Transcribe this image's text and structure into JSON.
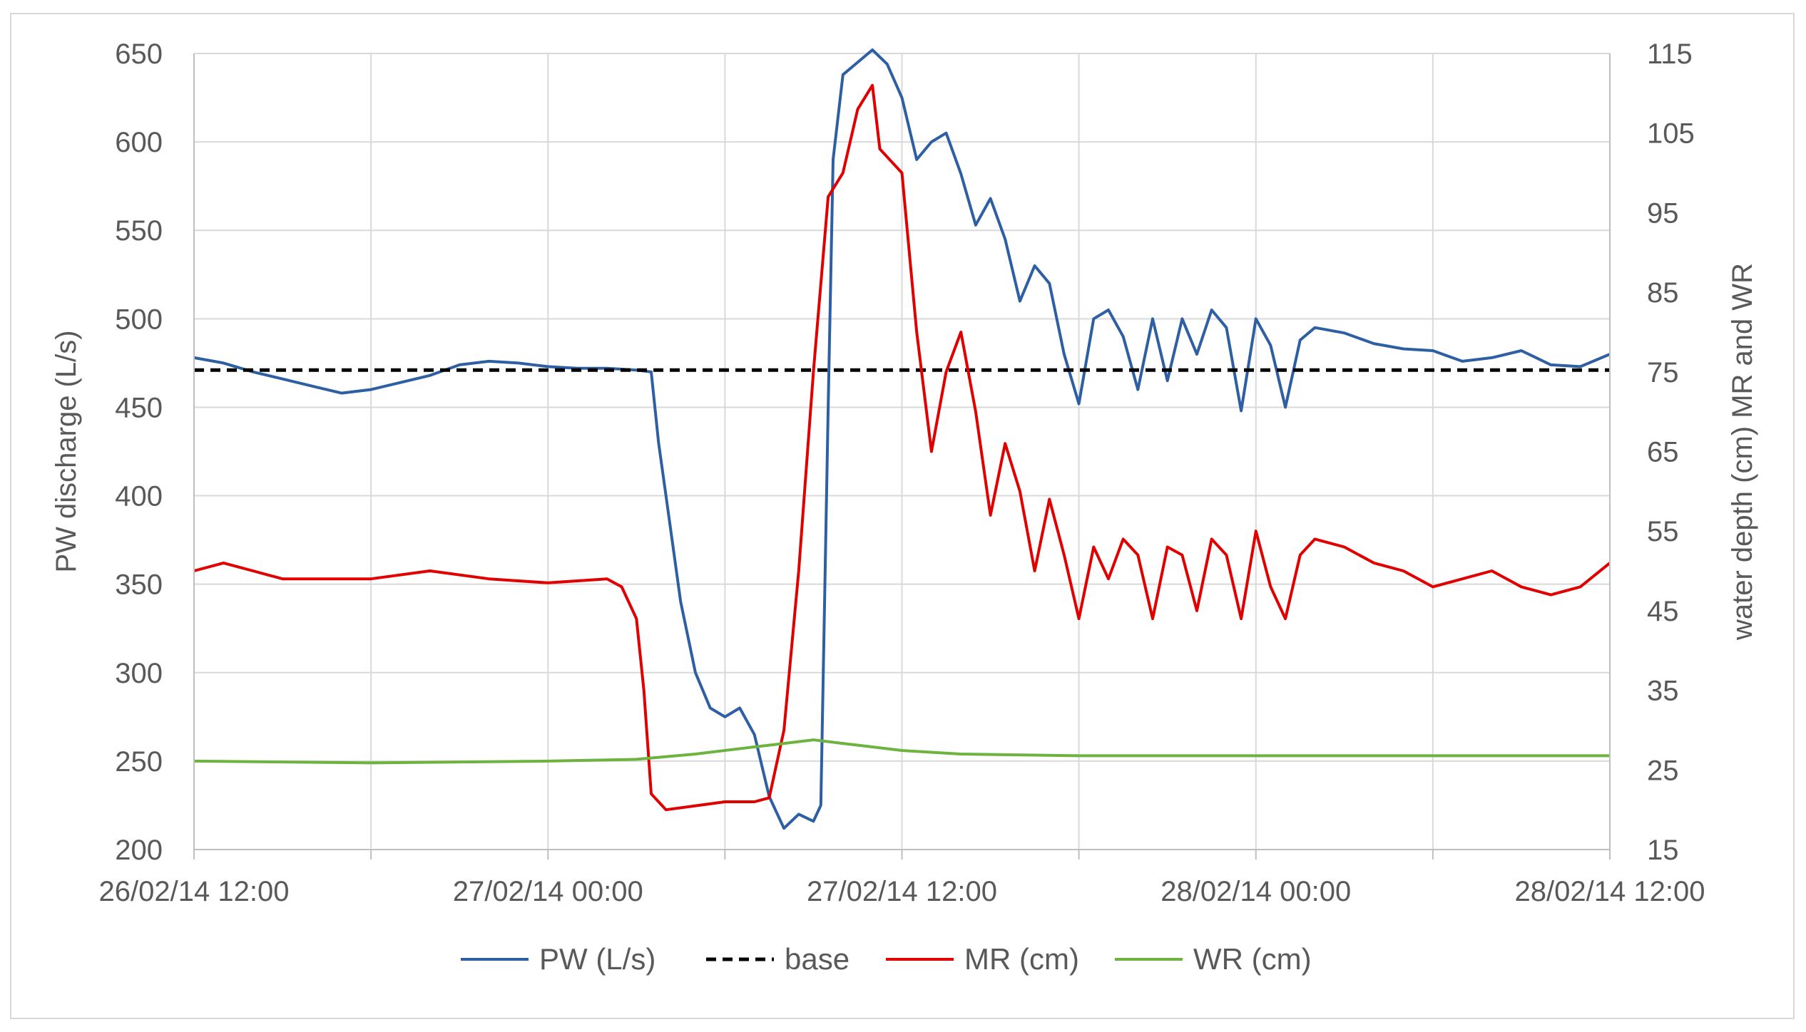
{
  "chart_data": {
    "type": "line",
    "title": "",
    "xlabel": "",
    "ylabel": "PW discharge (L/s)",
    "y2label": "water depth (cm) MR and WR",
    "x_range": [
      "26/02/14 12:00",
      "28/02/14 12:00"
    ],
    "x_ticks": [
      "26/02/14 12:00",
      "27/02/14 00:00",
      "27/02/14 12:00",
      "28/02/14 00:00",
      "28/02/14 12:00"
    ],
    "ylim": [
      200,
      650
    ],
    "y_ticks": [
      200,
      250,
      300,
      350,
      400,
      450,
      500,
      550,
      600,
      650
    ],
    "y2lim": [
      15,
      115
    ],
    "y2_ticks": [
      15,
      25,
      35,
      45,
      55,
      65,
      75,
      85,
      95,
      105,
      115
    ],
    "grid": true,
    "legend_position": "bottom",
    "series": [
      {
        "name": "PW (L/s)",
        "axis": "left",
        "color": "#2e5fa3",
        "style": "solid",
        "points": [
          [
            "26/02/14 12:00",
            478
          ],
          [
            "26/02/14 13:00",
            475
          ],
          [
            "26/02/14 14:00",
            470
          ],
          [
            "26/02/14 15:00",
            466
          ],
          [
            "26/02/14 16:00",
            462
          ],
          [
            "26/02/14 17:00",
            458
          ],
          [
            "26/02/14 18:00",
            460
          ],
          [
            "26/02/14 19:00",
            464
          ],
          [
            "26/02/14 20:00",
            468
          ],
          [
            "26/02/14 21:00",
            474
          ],
          [
            "26/02/14 22:00",
            476
          ],
          [
            "26/02/14 23:00",
            475
          ],
          [
            "27/02/14 00:00",
            473
          ],
          [
            "27/02/14 01:00",
            472
          ],
          [
            "27/02/14 02:00",
            472
          ],
          [
            "27/02/14 03:00",
            471
          ],
          [
            "27/02/14 03:30",
            470
          ],
          [
            "27/02/14 03:45",
            430
          ],
          [
            "27/02/14 04:00",
            400
          ],
          [
            "27/02/14 04:30",
            340
          ],
          [
            "27/02/14 05:00",
            300
          ],
          [
            "27/02/14 05:30",
            280
          ],
          [
            "27/02/14 06:00",
            275
          ],
          [
            "27/02/14 06:30",
            280
          ],
          [
            "27/02/14 07:00",
            265
          ],
          [
            "27/02/14 07:30",
            230
          ],
          [
            "27/02/14 08:00",
            212
          ],
          [
            "27/02/14 08:30",
            220
          ],
          [
            "27/02/14 09:00",
            216
          ],
          [
            "27/02/14 09:15",
            225
          ],
          [
            "27/02/14 09:30",
            450
          ],
          [
            "27/02/14 09:40",
            590
          ],
          [
            "27/02/14 10:00",
            638
          ],
          [
            "27/02/14 10:30",
            645
          ],
          [
            "27/02/14 11:00",
            652
          ],
          [
            "27/02/14 11:30",
            644
          ],
          [
            "27/02/14 12:00",
            625
          ],
          [
            "27/02/14 12:30",
            590
          ],
          [
            "27/02/14 13:00",
            600
          ],
          [
            "27/02/14 13:30",
            605
          ],
          [
            "27/02/14 14:00",
            582
          ],
          [
            "27/02/14 14:30",
            553
          ],
          [
            "27/02/14 15:00",
            568
          ],
          [
            "27/02/14 15:30",
            545
          ],
          [
            "27/02/14 16:00",
            510
          ],
          [
            "27/02/14 16:30",
            530
          ],
          [
            "27/02/14 17:00",
            520
          ],
          [
            "27/02/14 17:30",
            480
          ],
          [
            "27/02/14 18:00",
            452
          ],
          [
            "27/02/14 18:30",
            500
          ],
          [
            "27/02/14 19:00",
            505
          ],
          [
            "27/02/14 19:30",
            490
          ],
          [
            "27/02/14 20:00",
            460
          ],
          [
            "27/02/14 20:30",
            500
          ],
          [
            "27/02/14 21:00",
            465
          ],
          [
            "27/02/14 21:30",
            500
          ],
          [
            "27/02/14 22:00",
            480
          ],
          [
            "27/02/14 22:30",
            505
          ],
          [
            "27/02/14 23:00",
            495
          ],
          [
            "27/02/14 23:30",
            448
          ],
          [
            "28/02/14 00:00",
            500
          ],
          [
            "28/02/14 00:30",
            485
          ],
          [
            "28/02/14 01:00",
            450
          ],
          [
            "28/02/14 01:30",
            488
          ],
          [
            "28/02/14 02:00",
            495
          ],
          [
            "28/02/14 03:00",
            492
          ],
          [
            "28/02/14 04:00",
            486
          ],
          [
            "28/02/14 05:00",
            483
          ],
          [
            "28/02/14 06:00",
            482
          ],
          [
            "28/02/14 07:00",
            476
          ],
          [
            "28/02/14 08:00",
            478
          ],
          [
            "28/02/14 09:00",
            482
          ],
          [
            "28/02/14 10:00",
            474
          ],
          [
            "28/02/14 11:00",
            473
          ],
          [
            "28/02/14 12:00",
            480
          ]
        ]
      },
      {
        "name": "base",
        "axis": "left",
        "color": "#000000",
        "style": "dashed",
        "points": [
          [
            "26/02/14 12:00",
            471
          ],
          [
            "28/02/14 12:00",
            471
          ]
        ]
      },
      {
        "name": "MR (cm)",
        "axis": "right",
        "color": "#e00000",
        "style": "solid",
        "points": [
          [
            "26/02/14 12:00",
            50
          ],
          [
            "26/02/14 13:00",
            51
          ],
          [
            "26/02/14 14:00",
            50
          ],
          [
            "26/02/14 15:00",
            49
          ],
          [
            "26/02/14 16:00",
            49
          ],
          [
            "26/02/14 18:00",
            49
          ],
          [
            "26/02/14 20:00",
            50
          ],
          [
            "26/02/14 22:00",
            49
          ],
          [
            "27/02/14 00:00",
            48.5
          ],
          [
            "27/02/14 02:00",
            49
          ],
          [
            "27/02/14 02:30",
            48
          ],
          [
            "27/02/14 03:00",
            44
          ],
          [
            "27/02/14 03:15",
            35
          ],
          [
            "27/02/14 03:30",
            22
          ],
          [
            "27/02/14 04:00",
            20
          ],
          [
            "27/02/14 05:00",
            20.5
          ],
          [
            "27/02/14 06:00",
            21
          ],
          [
            "27/02/14 07:00",
            21
          ],
          [
            "27/02/14 07:30",
            21.5
          ],
          [
            "27/02/14 08:00",
            30
          ],
          [
            "27/02/14 08:30",
            50
          ],
          [
            "27/02/14 09:00",
            75
          ],
          [
            "27/02/14 09:30",
            97
          ],
          [
            "27/02/14 10:00",
            100
          ],
          [
            "27/02/14 10:30",
            108
          ],
          [
            "27/02/14 11:00",
            111
          ],
          [
            "27/02/14 11:15",
            103
          ],
          [
            "27/02/14 11:30",
            102
          ],
          [
            "27/02/14 12:00",
            100
          ],
          [
            "27/02/14 12:30",
            80
          ],
          [
            "27/02/14 13:00",
            65
          ],
          [
            "27/02/14 13:30",
            75
          ],
          [
            "27/02/14 14:00",
            80
          ],
          [
            "27/02/14 14:30",
            70
          ],
          [
            "27/02/14 15:00",
            57
          ],
          [
            "27/02/14 15:30",
            66
          ],
          [
            "27/02/14 16:00",
            60
          ],
          [
            "27/02/14 16:30",
            50
          ],
          [
            "27/02/14 17:00",
            59
          ],
          [
            "27/02/14 17:30",
            52
          ],
          [
            "27/02/14 18:00",
            44
          ],
          [
            "27/02/14 18:30",
            53
          ],
          [
            "27/02/14 19:00",
            49
          ],
          [
            "27/02/14 19:30",
            54
          ],
          [
            "27/02/14 20:00",
            52
          ],
          [
            "27/02/14 20:30",
            44
          ],
          [
            "27/02/14 21:00",
            53
          ],
          [
            "27/02/14 21:30",
            52
          ],
          [
            "27/02/14 22:00",
            45
          ],
          [
            "27/02/14 22:30",
            54
          ],
          [
            "27/02/14 23:00",
            52
          ],
          [
            "27/02/14 23:30",
            44
          ],
          [
            "28/02/14 00:00",
            55
          ],
          [
            "28/02/14 00:30",
            48
          ],
          [
            "28/02/14 01:00",
            44
          ],
          [
            "28/02/14 01:30",
            52
          ],
          [
            "28/02/14 02:00",
            54
          ],
          [
            "28/02/14 03:00",
            53
          ],
          [
            "28/02/14 04:00",
            51
          ],
          [
            "28/02/14 05:00",
            50
          ],
          [
            "28/02/14 06:00",
            48
          ],
          [
            "28/02/14 07:00",
            49
          ],
          [
            "28/02/14 08:00",
            50
          ],
          [
            "28/02/14 09:00",
            48
          ],
          [
            "28/02/14 10:00",
            47
          ],
          [
            "28/02/14 11:00",
            48
          ],
          [
            "28/02/14 12:00",
            51
          ]
        ]
      },
      {
        "name": "WR (cm)",
        "axis": "left",
        "color": "#6db33f",
        "style": "solid",
        "points": [
          [
            "26/02/14 12:00",
            250
          ],
          [
            "26/02/14 18:00",
            249
          ],
          [
            "27/02/14 00:00",
            250
          ],
          [
            "27/02/14 03:00",
            251
          ],
          [
            "27/02/14 05:00",
            254
          ],
          [
            "27/02/14 07:00",
            258
          ],
          [
            "27/02/14 08:00",
            260
          ],
          [
            "27/02/14 09:00",
            262
          ],
          [
            "27/02/14 10:00",
            260
          ],
          [
            "27/02/14 11:00",
            258
          ],
          [
            "27/02/14 12:00",
            256
          ],
          [
            "27/02/14 14:00",
            254
          ],
          [
            "27/02/14 18:00",
            253
          ],
          [
            "28/02/14 00:00",
            253
          ],
          [
            "28/02/14 06:00",
            253
          ],
          [
            "28/02/14 12:00",
            253
          ]
        ]
      }
    ]
  }
}
